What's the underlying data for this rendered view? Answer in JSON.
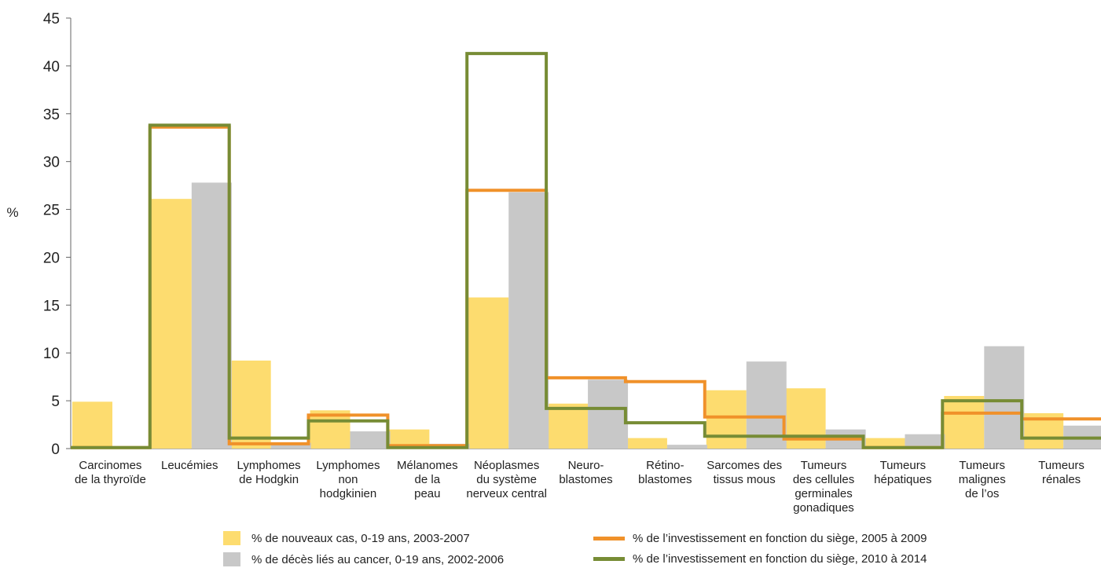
{
  "chart_data": {
    "type": "bar",
    "ylabel": "%",
    "ylim": [
      0,
      45
    ],
    "yticks": [
      "0",
      "5",
      "10",
      "15",
      "20",
      "25",
      "30",
      "35",
      "40",
      "45"
    ],
    "categories": [
      [
        "Carcinomes",
        "de la thyroïde"
      ],
      [
        "Leucémies"
      ],
      [
        "Lymphomes",
        "de Hodgkin"
      ],
      [
        "Lymphomes",
        "non",
        "hodgkinien"
      ],
      [
        "Mélanomes",
        "de la",
        "peau"
      ],
      [
        "Néoplasmes",
        "du système",
        "nerveux central"
      ],
      [
        "Neuro-",
        "blastomes"
      ],
      [
        "Rétino-",
        "blastomes"
      ],
      [
        "Sarcomes des",
        "tissus mous"
      ],
      [
        "Tumeurs",
        "des cellules",
        "germinales",
        "gonadiques"
      ],
      [
        "Tumeurs",
        "hépatiques"
      ],
      [
        "Tumeurs",
        "malignes",
        "de l’os"
      ],
      [
        "Tumeurs",
        "rénales"
      ]
    ],
    "series": [
      {
        "name": "% de nouveaux cas, 0-19 ans, 2003-2007",
        "kind": "bar",
        "color": "#fddc6f",
        "values": [
          4.9,
          26.1,
          9.2,
          4.0,
          2.0,
          15.8,
          4.7,
          1.1,
          6.1,
          6.3,
          1.1,
          5.5,
          3.7
        ]
      },
      {
        "name": "% de décès liés au cancer, 0-19 ans, 2002-2006",
        "kind": "bar",
        "color": "#c8c8c8",
        "values": [
          0,
          27.8,
          0.6,
          1.8,
          0.5,
          26.8,
          7.2,
          0.4,
          9.1,
          2.0,
          1.5,
          10.7,
          2.4
        ]
      },
      {
        "name": "% de l’investissement en fonction du siège, 2005 à 2009",
        "kind": "step",
        "color": "#f0912a",
        "values": [
          0.1,
          33.6,
          0.5,
          3.5,
          0.3,
          27.0,
          7.4,
          7.0,
          3.3,
          1.0,
          0.1,
          3.7,
          3.1
        ]
      },
      {
        "name": "% de l’investissement en fonction du siège, 2010 à 2014",
        "kind": "step",
        "color": "#778c35",
        "values": [
          0.1,
          33.8,
          1.1,
          2.9,
          0.1,
          41.3,
          4.2,
          2.7,
          1.3,
          1.3,
          0.1,
          5.0,
          1.1
        ]
      }
    ]
  }
}
